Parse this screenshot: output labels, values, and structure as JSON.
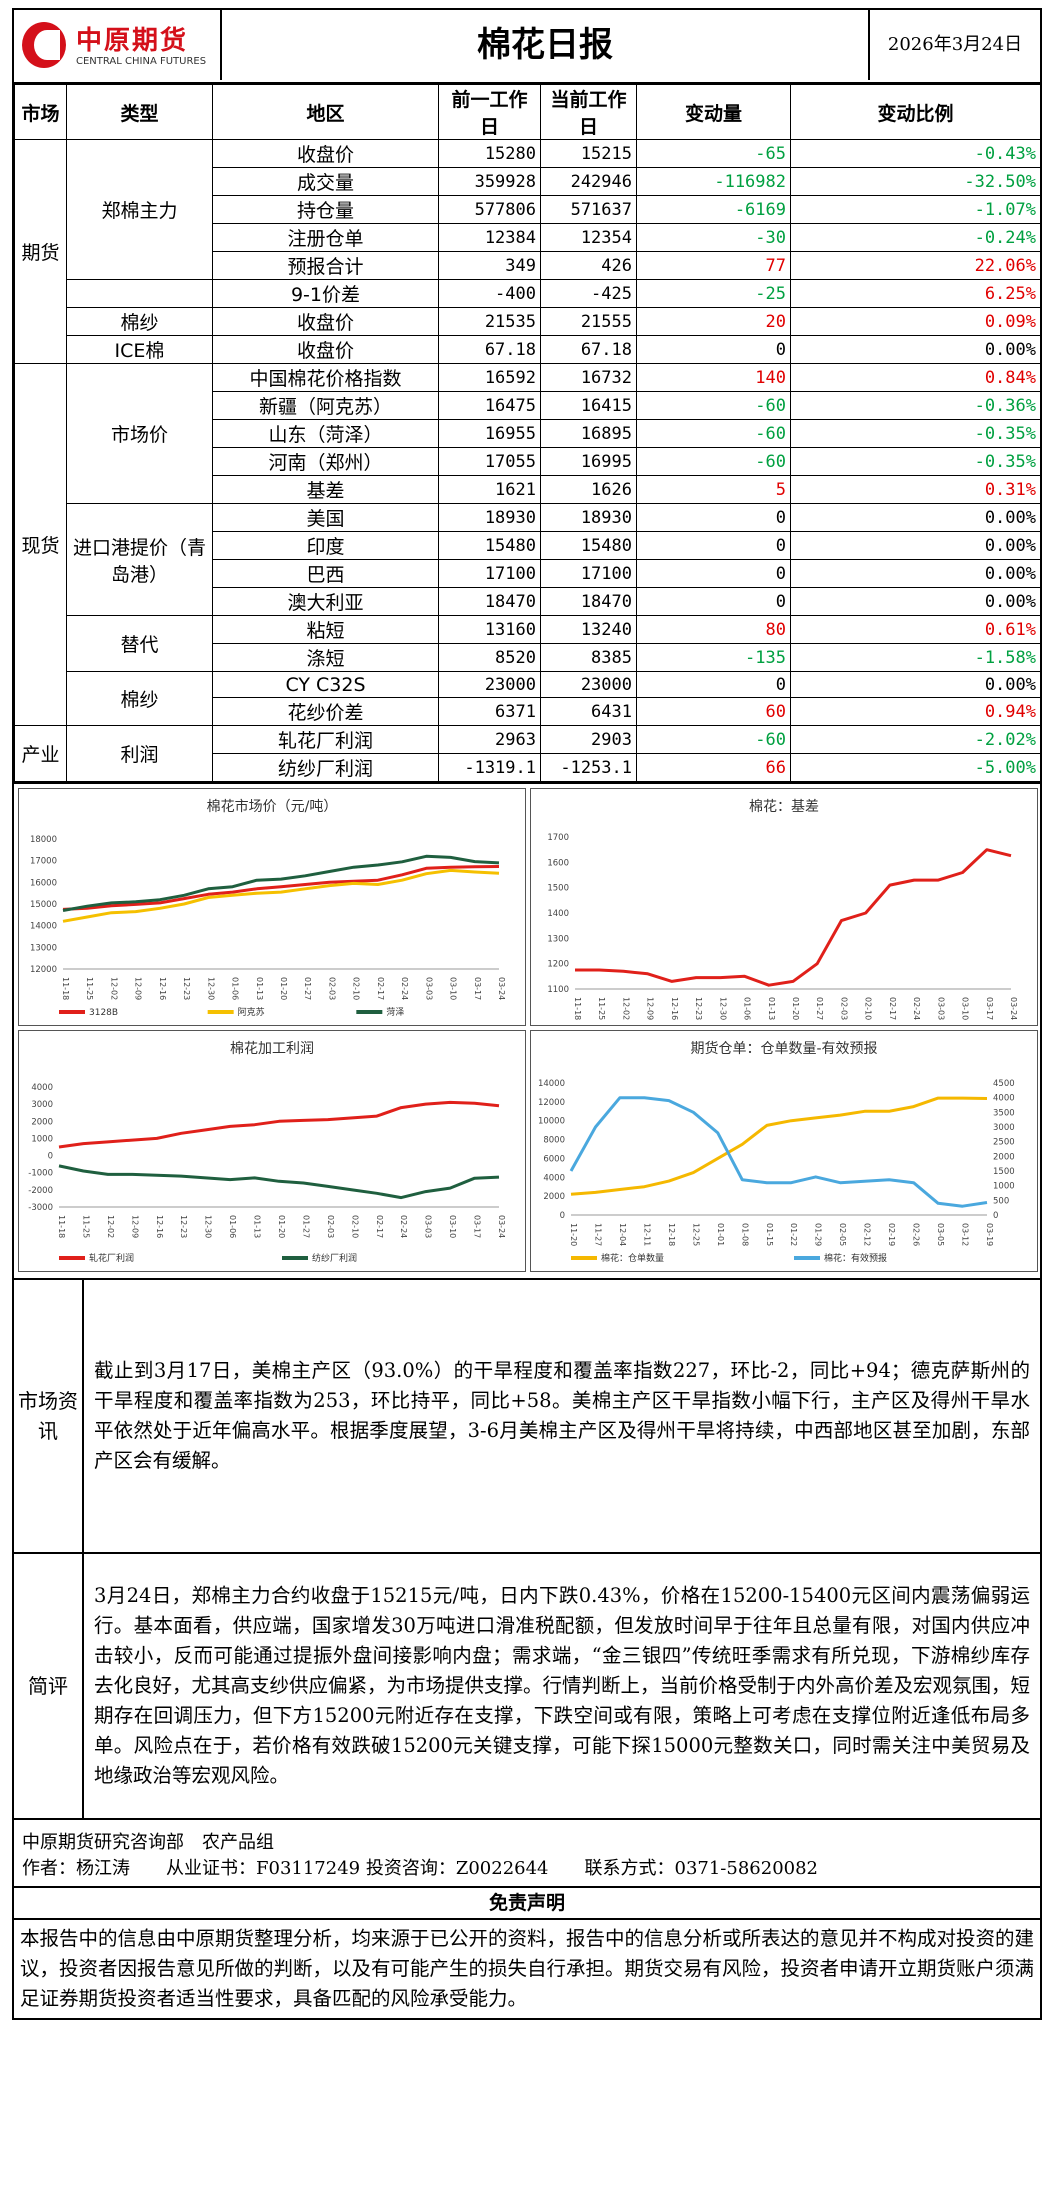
{
  "header": {
    "logo_cn": "中原期货",
    "logo_en": "CENTRAL CHINA FUTURES",
    "title": "棉花日报",
    "date": "2026年3月24日"
  },
  "table": {
    "columns": [
      "市场",
      "类型",
      "地区",
      "前一工作日",
      "当前工作日",
      "变动量",
      "变动比例"
    ],
    "groups": {
      "futures": "期货",
      "spot": "现货",
      "industry": "产业"
    },
    "types": {
      "zz": "郑棉主力",
      "ys": "棉纱",
      "ice": "ICE棉",
      "scj": "市场价",
      "jk": "进口港提价（青岛港）",
      "td": "替代",
      "ms2": "棉纱",
      "lr": "利润"
    },
    "rows": [
      {
        "area": "收盘价",
        "prev": "15280",
        "cur": "15215",
        "chg": "-65",
        "pct": "-0.43%",
        "color": "green"
      },
      {
        "area": "成交量",
        "prev": "359928",
        "cur": "242946",
        "chg": "-116982",
        "pct": "-32.50%",
        "color": "green"
      },
      {
        "area": "持仓量",
        "prev": "577806",
        "cur": "571637",
        "chg": "-6169",
        "pct": "-1.07%",
        "color": "green"
      },
      {
        "area": "注册仓单",
        "prev": "12384",
        "cur": "12354",
        "chg": "-30",
        "pct": "-0.24%",
        "color": "green"
      },
      {
        "area": "预报合计",
        "prev": "349",
        "cur": "426",
        "chg": "77",
        "pct": "22.06%",
        "color": "red"
      },
      {
        "area": "9-1价差",
        "prev": "-400",
        "cur": "-425",
        "chg": "-25",
        "pct": "6.25%",
        "color": "green",
        "pctcolor": "red"
      },
      {
        "area": "收盘价",
        "prev": "21535",
        "cur": "21555",
        "chg": "20",
        "pct": "0.09%",
        "color": "red"
      },
      {
        "area": "收盘价",
        "prev": "67.18",
        "cur": "67.18",
        "chg": "0",
        "pct": "0.00%",
        "color": "blk"
      },
      {
        "area": "中国棉花价格指数",
        "prev": "16592",
        "cur": "16732",
        "chg": "140",
        "pct": "0.84%",
        "color": "red"
      },
      {
        "area": "新疆（阿克苏）",
        "prev": "16475",
        "cur": "16415",
        "chg": "-60",
        "pct": "-0.36%",
        "color": "green"
      },
      {
        "area": "山东（菏泽）",
        "prev": "16955",
        "cur": "16895",
        "chg": "-60",
        "pct": "-0.35%",
        "color": "green"
      },
      {
        "area": "河南（郑州）",
        "prev": "17055",
        "cur": "16995",
        "chg": "-60",
        "pct": "-0.35%",
        "color": "green"
      },
      {
        "area": "基差",
        "prev": "1621",
        "cur": "1626",
        "chg": "5",
        "pct": "0.31%",
        "color": "red"
      },
      {
        "area": "美国",
        "prev": "18930",
        "cur": "18930",
        "chg": "0",
        "pct": "0.00%",
        "color": "blk"
      },
      {
        "area": "印度",
        "prev": "15480",
        "cur": "15480",
        "chg": "0",
        "pct": "0.00%",
        "color": "blk"
      },
      {
        "area": "巴西",
        "prev": "17100",
        "cur": "17100",
        "chg": "0",
        "pct": "0.00%",
        "color": "blk"
      },
      {
        "area": "澳大利亚",
        "prev": "18470",
        "cur": "18470",
        "chg": "0",
        "pct": "0.00%",
        "color": "blk"
      },
      {
        "area": "粘短",
        "prev": "13160",
        "cur": "13240",
        "chg": "80",
        "pct": "0.61%",
        "color": "red"
      },
      {
        "area": "涤短",
        "prev": "8520",
        "cur": "8385",
        "chg": "-135",
        "pct": "-1.58%",
        "color": "green"
      },
      {
        "area": "CY C32S",
        "prev": "23000",
        "cur": "23000",
        "chg": "0",
        "pct": "0.00%",
        "color": "blk"
      },
      {
        "area": "花纱价差",
        "prev": "6371",
        "cur": "6431",
        "chg": "60",
        "pct": "0.94%",
        "color": "red"
      },
      {
        "area": "轧花厂利润",
        "prev": "2963",
        "cur": "2903",
        "chg": "-60",
        "pct": "-2.02%",
        "color": "green"
      },
      {
        "area": "纺纱厂利润",
        "prev": "-1319.1",
        "cur": "-1253.1",
        "chg": "66",
        "pct": "-5.00%",
        "color": "red",
        "pctcolor": "green"
      }
    ]
  },
  "chart_data": [
    {
      "type": "line",
      "title": "棉花市场价（元/吨）",
      "ylim": [
        12000,
        18000
      ],
      "yticks": [
        "18000",
        "17000",
        "16000",
        "15000",
        "14000",
        "13000",
        "12000"
      ],
      "xticks": [
        "11-18",
        "11-25",
        "12-02",
        "12-09",
        "12-16",
        "12-23",
        "12-30",
        "01-06",
        "01-13",
        "01-20",
        "01-27",
        "02-03",
        "02-10",
        "02-17",
        "02-24",
        "03-03",
        "03-10",
        "03-17",
        "03-24"
      ],
      "series": [
        {
          "name": "3128B",
          "color": "#e0201a",
          "values": [
            14750,
            14800,
            14920,
            14980,
            15050,
            15250,
            15450,
            15550,
            15700,
            15800,
            15900,
            16000,
            16050,
            16100,
            16350,
            16650,
            16700,
            16720,
            16732
          ]
        },
        {
          "name": "阿克苏",
          "color": "#f5c000",
          "values": [
            14200,
            14400,
            14600,
            14650,
            14800,
            15000,
            15300,
            15400,
            15500,
            15550,
            15700,
            15850,
            15950,
            15900,
            16100,
            16400,
            16550,
            16475,
            16415
          ]
        },
        {
          "name": "菏泽",
          "color": "#1f5f3f",
          "values": [
            14700,
            14900,
            15050,
            15100,
            15200,
            15400,
            15700,
            15800,
            16100,
            16150,
            16300,
            16500,
            16700,
            16800,
            16950,
            17200,
            17150,
            16955,
            16895
          ]
        }
      ]
    },
    {
      "type": "line",
      "title": "棉花：基差",
      "ylim": [
        1100,
        1700
      ],
      "yticks": [
        "1700",
        "1600",
        "1500",
        "1400",
        "1300",
        "1200",
        "1100"
      ],
      "xticks": [
        "11-18",
        "11-25",
        "12-02",
        "12-09",
        "12-16",
        "12-23",
        "12-30",
        "01-06",
        "01-13",
        "01-20",
        "01-27",
        "02-03",
        "02-10",
        "02-17",
        "02-24",
        "03-03",
        "03-10",
        "03-17",
        "03-24"
      ],
      "series": [
        {
          "name": "基差",
          "color": "#e0201a",
          "values": [
            1175,
            1175,
            1170,
            1160,
            1130,
            1145,
            1145,
            1150,
            1115,
            1130,
            1200,
            1370,
            1400,
            1510,
            1530,
            1530,
            1560,
            1650,
            1626
          ]
        }
      ]
    },
    {
      "type": "line",
      "title": "棉花加工利润",
      "ylim": [
        -3000,
        4000
      ],
      "yticks": [
        "4000",
        "3000",
        "2000",
        "1000",
        "0",
        "-1000",
        "-2000",
        "-3000"
      ],
      "xticks": [
        "11-18",
        "11-25",
        "12-02",
        "12-09",
        "12-16",
        "12-23",
        "12-30",
        "01-06",
        "01-13",
        "01-20",
        "01-27",
        "02-03",
        "02-10",
        "02-17",
        "02-24",
        "03-03",
        "03-10",
        "03-17",
        "03-24"
      ],
      "series": [
        {
          "name": "轧花厂利润",
          "color": "#e0201a",
          "values": [
            500,
            700,
            800,
            900,
            1000,
            1300,
            1500,
            1700,
            1800,
            2000,
            2050,
            2100,
            2200,
            2300,
            2800,
            3000,
            3100,
            3050,
            2903
          ]
        },
        {
          "name": "纺纱厂利润",
          "color": "#1f5f3f",
          "values": [
            -600,
            -900,
            -1100,
            -1100,
            -1150,
            -1200,
            -1300,
            -1400,
            -1300,
            -1500,
            -1600,
            -1800,
            -2000,
            -2200,
            -2450,
            -2100,
            -1900,
            -1319,
            -1253
          ]
        }
      ]
    },
    {
      "type": "line",
      "title": "期货仓单：仓单数量-有效预报",
      "ylim": [
        0,
        14000
      ],
      "y2lim": [
        0,
        4500
      ],
      "yticks": [
        "14000",
        "12000",
        "10000",
        "8000",
        "6000",
        "4000",
        "2000",
        "0"
      ],
      "y2ticks": [
        "4500",
        "4000",
        "3500",
        "3000",
        "2500",
        "2000",
        "1500",
        "1000",
        "500",
        "0"
      ],
      "xticks": [
        "11-20",
        "11-27",
        "12-04",
        "12-11",
        "12-18",
        "12-25",
        "01-01",
        "01-08",
        "01-15",
        "01-22",
        "01-29",
        "02-05",
        "02-12",
        "02-19",
        "02-26",
        "03-05",
        "03-12",
        "03-19"
      ],
      "series": [
        {
          "name": "棉花：仓单数量",
          "color": "#f5b800",
          "axis": "left",
          "values": [
            2200,
            2400,
            2700,
            3000,
            3600,
            4500,
            6000,
            7500,
            9500,
            10000,
            10300,
            10600,
            11000,
            11000,
            11500,
            12400,
            12400,
            12354
          ]
        },
        {
          "name": "棉花：有效预报",
          "color": "#4aa8de",
          "axis": "right",
          "values": [
            1500,
            3000,
            4000,
            4000,
            3900,
            3500,
            2800,
            1200,
            1100,
            1100,
            1300,
            1100,
            1150,
            1200,
            1100,
            400,
            300,
            426
          ]
        }
      ]
    }
  ],
  "text": {
    "info_label": "市场资讯",
    "info": "截止到3月17日，美棉主产区（93.0%）的干旱程度和覆盖率指数227，环比-2，同比+94；德克萨斯州的干旱程度和覆盖率指数为253，环比持平，同比+58。美棉主产区干旱指数小幅下行，主产区及得州干旱水平依然处于近年偏高水平。根据季度展望，3-6月美棉主产区及得州干旱将持续，中西部地区甚至加剧，东部产区会有缓解。",
    "comment_label": "简评",
    "comment": "3月24日，郑棉主力合约收盘于15215元/吨，日内下跌0.43%，价格在15200-15400元区间内震荡偏弱运行。基本面看，供应端，国家增发30万吨进口滑准税配额，但发放时间早于往年且总量有限，对国内供应冲击较小，反而可能通过提振外盘间接影响内盘；需求端，“金三银四”传统旺季需求有所兑现，下游棉纱库存去化良好，尤其高支纱供应偏紧，为市场提供支撑。行情判断上，当前价格受制于内外高价差及宏观氛围，短期存在回调压力，但下方15200元附近存在支撑，下跌空间或有限，策略上可考虑在支撑位附近逢低布局多单。风险点在于，若价格有效跌破15200元关键支撑，可能下探15000元整数关口，同时需关注中美贸易及地缘政治等宏观风险。"
  },
  "footer": {
    "dept": "中原期货研究咨询部　农产品组",
    "author": "作者：杨江涛　　从业证书：F03117249 投资咨询：Z0022644　　联系方式：0371-58620082",
    "disclaimer_title": "免责声明",
    "disclaimer": "本报告中的信息由中原期货整理分析，均来源于已公开的资料，报告中的信息分析或所表达的意见并不构成对投资的建议，投资者因报告意见所做的判断，以及有可能产生的损失自行承担。期货交易有风险，投资者申请开立期货账户须满足证券期货投资者适当性要求，具备匹配的风险承受能力。"
  }
}
